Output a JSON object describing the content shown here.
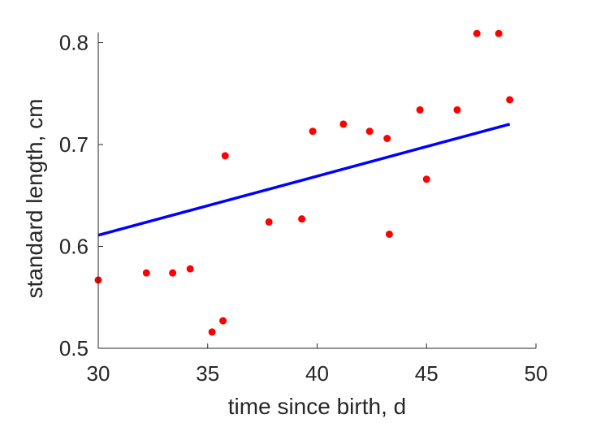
{
  "chart_data": {
    "type": "scatter",
    "xlabel": "time since birth, d",
    "ylabel": "standard length, cm",
    "xlim": [
      30,
      50
    ],
    "ylim": [
      0.5,
      0.81
    ],
    "x_ticks": [
      30,
      35,
      40,
      45,
      50
    ],
    "y_ticks": [
      0.5,
      0.6,
      0.7,
      0.8
    ],
    "x_tick_labels": [
      "30",
      "35",
      "40",
      "45",
      "50"
    ],
    "y_tick_labels": [
      "0.5",
      "0.6",
      "0.7",
      "0.8"
    ],
    "grid": false,
    "legend": "none",
    "series": [
      {
        "type": "scatter",
        "color": "#ff0000",
        "points": [
          {
            "x": 30.0,
            "y": 0.567
          },
          {
            "x": 32.2,
            "y": 0.574
          },
          {
            "x": 33.4,
            "y": 0.574
          },
          {
            "x": 34.2,
            "y": 0.578
          },
          {
            "x": 35.2,
            "y": 0.516
          },
          {
            "x": 35.7,
            "y": 0.527
          },
          {
            "x": 35.8,
            "y": 0.689
          },
          {
            "x": 37.8,
            "y": 0.624
          },
          {
            "x": 39.3,
            "y": 0.627
          },
          {
            "x": 39.8,
            "y": 0.713
          },
          {
            "x": 41.2,
            "y": 0.72
          },
          {
            "x": 42.4,
            "y": 0.713
          },
          {
            "x": 43.2,
            "y": 0.706
          },
          {
            "x": 43.3,
            "y": 0.612
          },
          {
            "x": 44.7,
            "y": 0.734
          },
          {
            "x": 45.0,
            "y": 0.666
          },
          {
            "x": 46.4,
            "y": 0.734
          },
          {
            "x": 47.3,
            "y": 0.809
          },
          {
            "x": 48.3,
            "y": 0.809
          },
          {
            "x": 48.8,
            "y": 0.744
          }
        ]
      },
      {
        "type": "line",
        "color": "#0000ff",
        "points": [
          {
            "x": 30.0,
            "y": 0.611
          },
          {
            "x": 48.8,
            "y": 0.72
          }
        ]
      }
    ]
  }
}
